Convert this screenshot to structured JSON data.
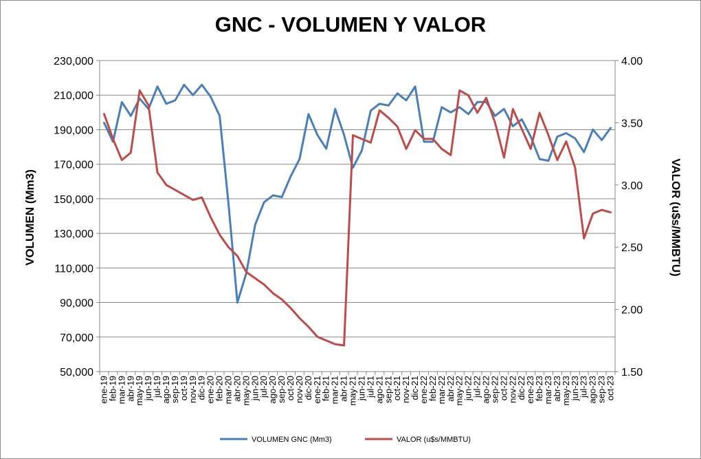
{
  "chart_data": {
    "type": "line",
    "title": "GNC - VOLUMEN Y VALOR",
    "ylabel_left": "VOLUMEN (Mm3)",
    "ylabel_right": "VALOR (u$s/MMBTU)",
    "xlabel": "",
    "ylim_left": [
      50000,
      230000
    ],
    "ylim_right": [
      1.5,
      4.0
    ],
    "yticks_left": [
      "50,000",
      "70,000",
      "90,000",
      "110,000",
      "130,000",
      "150,000",
      "170,000",
      "190,000",
      "210,000",
      "230,000"
    ],
    "yticks_right": [
      "1.50",
      "2.00",
      "2.50",
      "3.00",
      "3.50",
      "4.00"
    ],
    "grid": "horizontal",
    "legend_position": "bottom",
    "colors": {
      "volumen": "#4a7ebb",
      "valor": "#be4b48",
      "grid": "#878787"
    },
    "categories": [
      "ene-19",
      "feb-19",
      "mar-19",
      "abr-19",
      "may-19",
      "jun-19",
      "jul-19",
      "ago-19",
      "sep-19",
      "oct-19",
      "nov-19",
      "dic-19",
      "ene-20",
      "feb-20",
      "mar-20",
      "abr-20",
      "may-20",
      "jun-20",
      "jul-20",
      "ago-20",
      "sep-20",
      "oct-20",
      "nov-20",
      "dic-20",
      "ene-21",
      "feb-21",
      "mar-21",
      "abr-21",
      "may-21",
      "jun-21",
      "jul-21",
      "ago-21",
      "sep-21",
      "oct-21",
      "nov-21",
      "dic-21",
      "ene-22",
      "feb-22",
      "mar-22",
      "abr-22",
      "may-22",
      "jun-22",
      "jul-22",
      "ago-22",
      "sep-22",
      "oct-22",
      "nov-22",
      "dic-22",
      "ene-23",
      "feb-23",
      "mar-23",
      "abr-23",
      "may-23",
      "jun-23",
      "jul-23",
      "ago-23",
      "sep-23",
      "oct-23"
    ],
    "series": [
      {
        "name": "VOLUMEN GNC (Mm3)",
        "axis": "left",
        "values": [
          194000,
          183000,
          206000,
          198000,
          208000,
          202000,
          215000,
          205000,
          207000,
          216000,
          210000,
          216000,
          209000,
          198000,
          147000,
          90000,
          107000,
          135000,
          148000,
          152000,
          151000,
          163000,
          173000,
          199000,
          187000,
          179000,
          202000,
          187000,
          168000,
          178000,
          201000,
          205000,
          204000,
          211000,
          207000,
          215000,
          183000,
          183000,
          203000,
          200000,
          203000,
          199000,
          206000,
          206000,
          198000,
          202000,
          192000,
          196000,
          186000,
          173000,
          172000,
          186000,
          188000,
          185000,
          177000,
          190000,
          184000,
          191000
        ]
      },
      {
        "name": "VALOR (u$s/MMBTU)",
        "axis": "right",
        "values": [
          3.57,
          3.37,
          3.2,
          3.26,
          3.76,
          3.64,
          3.1,
          3.0,
          2.96,
          2.92,
          2.88,
          2.9,
          2.74,
          2.6,
          2.5,
          2.43,
          2.3,
          2.25,
          2.2,
          2.13,
          2.08,
          2.01,
          1.93,
          1.86,
          1.78,
          1.75,
          1.72,
          1.71,
          3.4,
          3.37,
          3.34,
          3.6,
          3.54,
          3.47,
          3.29,
          3.44,
          3.37,
          3.37,
          3.29,
          3.24,
          3.76,
          3.72,
          3.58,
          3.7,
          3.5,
          3.22,
          3.61,
          3.45,
          3.29,
          3.58,
          3.4,
          3.2,
          3.35,
          3.14,
          2.57,
          2.77,
          2.8,
          2.78
        ]
      }
    ]
  }
}
